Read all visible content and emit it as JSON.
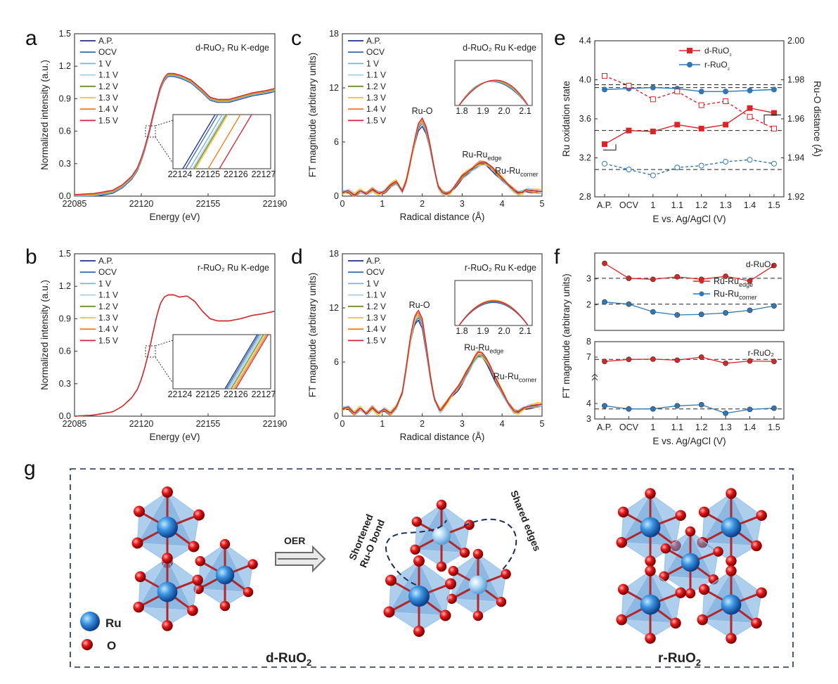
{
  "panel_labels": [
    "a",
    "b",
    "c",
    "d",
    "e",
    "f",
    "g"
  ],
  "chart_data": [
    {
      "id": "a",
      "type": "line",
      "annotation": "d-RuO₂ Ru K-edge",
      "xlabel": "Energy (eV)",
      "ylabel": "Normalized intensity (a.u.)",
      "xlim": [
        22085,
        22190
      ],
      "ylim": [
        0,
        1.5
      ],
      "xticks": [
        "22085",
        "22120",
        "22155",
        "22190"
      ],
      "yticks": [
        "0.0",
        "0.3",
        "0.6",
        "0.9",
        "1.2",
        "1.5"
      ],
      "legend": [
        "A.P.",
        "OCV",
        "1 V",
        "1.1 V",
        "1.2 V",
        "1.3 V",
        "1.4 V",
        "1.5 V"
      ],
      "inset_xticks": [
        "22124",
        "22125",
        "22126",
        "22127"
      ],
      "curve": {
        "x": [
          22085,
          22095,
          22105,
          22110,
          22115,
          22118,
          22120,
          22122,
          22124,
          22126,
          22128,
          22130,
          22132,
          22134,
          22137,
          22141,
          22146,
          22152,
          22156,
          22160,
          22166,
          22172,
          22178,
          22185,
          22190
        ],
        "y": [
          0.0,
          0.01,
          0.04,
          0.09,
          0.17,
          0.25,
          0.34,
          0.45,
          0.58,
          0.73,
          0.87,
          1.0,
          1.08,
          1.12,
          1.12,
          1.1,
          1.06,
          0.97,
          0.9,
          0.88,
          0.88,
          0.91,
          0.94,
          0.96,
          0.98
        ]
      }
    },
    {
      "id": "b",
      "type": "line",
      "annotation": "r-RuO₂ Ru K-edge",
      "xlabel": "Energy (eV)",
      "ylabel": "Normalized intensity (a.u.)",
      "xlim": [
        22085,
        22190
      ],
      "ylim": [
        0,
        1.5
      ],
      "xticks": [
        "22085",
        "22120",
        "22155",
        "22190"
      ],
      "yticks": [
        "0.0",
        "0.3",
        "0.6",
        "0.9",
        "1.2",
        "1.5"
      ],
      "legend": [
        "A.P.",
        "OCV",
        "1 V",
        "1.1 V",
        "1.2 V",
        "1.3 V",
        "1.4 V",
        "1.5 V"
      ],
      "inset_xticks": [
        "22124",
        "22125",
        "22126",
        "22127"
      ],
      "curve": {
        "x": [
          22085,
          22095,
          22105,
          22110,
          22115,
          22118,
          22120,
          22122,
          22124,
          22126,
          22128,
          22130,
          22132,
          22134,
          22137,
          22140,
          22144,
          22148,
          22152,
          22156,
          22160,
          22166,
          22172,
          22178,
          22185,
          22190
        ],
        "y": [
          0.0,
          0.01,
          0.04,
          0.09,
          0.17,
          0.25,
          0.34,
          0.46,
          0.6,
          0.76,
          0.92,
          1.04,
          1.1,
          1.12,
          1.12,
          1.1,
          1.11,
          1.06,
          0.97,
          0.9,
          0.88,
          0.88,
          0.9,
          0.93,
          0.95,
          0.97
        ]
      }
    },
    {
      "id": "c",
      "type": "line",
      "annotation": "d-RuO₂  Ru K-edge",
      "xlabel": "Radical distance (Å)",
      "ylabel": "FT magnitude (arbitrary units)",
      "xlim": [
        0,
        5
      ],
      "ylim": [
        0,
        18
      ],
      "xticks": [
        "0",
        "1",
        "2",
        "3",
        "4",
        "5"
      ],
      "yticks": [
        "0",
        "6",
        "12",
        "18"
      ],
      "legend": [
        "A.P.",
        "OCV",
        "1 V",
        "1.1 V",
        "1.2 V",
        "1.3 V",
        "1.4 V",
        "1.5 V"
      ],
      "peak_labels": [
        "Ru-O",
        "Ru-Ru",
        "edge",
        "Ru-Ru",
        "corner"
      ],
      "inset_xticks": [
        "1.8",
        "1.9",
        "2.0",
        "2.1"
      ],
      "curve": {
        "x": [
          0,
          0.15,
          0.3,
          0.45,
          0.6,
          0.75,
          0.9,
          1.05,
          1.2,
          1.35,
          1.5,
          1.6,
          1.7,
          1.8,
          1.9,
          2.0,
          2.1,
          2.2,
          2.3,
          2.4,
          2.5,
          2.6,
          2.7,
          2.8,
          2.9,
          3.0,
          3.1,
          3.2,
          3.3,
          3.45,
          3.6,
          3.75,
          3.9,
          4.05,
          4.2,
          4.3,
          4.4,
          4.5,
          4.6,
          4.75,
          5.0
        ],
        "y": [
          0.4,
          0.6,
          0.1,
          0.6,
          0.2,
          0.7,
          0.3,
          0.5,
          1.2,
          1.6,
          0.5,
          1.6,
          3.6,
          5.8,
          7.7,
          8.3,
          7.4,
          5.4,
          3.0,
          1.0,
          0.4,
          0.2,
          0.4,
          1.0,
          1.6,
          2.2,
          2.5,
          2.8,
          3.1,
          3.6,
          3.6,
          3.1,
          2.4,
          1.7,
          1.0,
          0.6,
          0.3,
          0.4,
          0.7,
          0.6,
          0.5
        ]
      }
    },
    {
      "id": "d",
      "type": "line",
      "annotation": "r-RuO₂  Ru K-edge",
      "xlabel": "Radical distance (Å)",
      "ylabel": "FT magnitude (arbitrary units)",
      "xlim": [
        0,
        5
      ],
      "ylim": [
        0,
        18
      ],
      "xticks": [
        "0",
        "1",
        "2",
        "3",
        "4",
        "5"
      ],
      "yticks": [
        "0",
        "6",
        "12",
        "18"
      ],
      "legend": [
        "A.P.",
        "OCV",
        "1 V",
        "1.1 V",
        "1.2 V",
        "1.3 V",
        "1.4 V",
        "1.5 V"
      ],
      "peak_labels": [
        "Ru-O",
        "Ru-Ru",
        "edge",
        "Ru-Ru",
        "corner"
      ],
      "inset_xticks": [
        "1.8",
        "1.9",
        "2.0",
        "2.1"
      ],
      "curve": {
        "x": [
          0,
          0.15,
          0.3,
          0.45,
          0.6,
          0.75,
          0.9,
          1.05,
          1.2,
          1.35,
          1.5,
          1.6,
          1.7,
          1.8,
          1.9,
          2.0,
          2.1,
          2.2,
          2.3,
          2.45,
          2.6,
          2.75,
          2.9,
          3.0,
          3.1,
          3.2,
          3.3,
          3.4,
          3.5,
          3.6,
          3.7,
          3.85,
          4.0,
          4.15,
          4.3,
          4.4,
          4.55,
          4.7,
          4.85,
          5.0
        ],
        "y": [
          0.8,
          1.0,
          0.3,
          0.9,
          0.2,
          0.9,
          0.3,
          0.8,
          0.3,
          1.0,
          2.5,
          5.2,
          8.3,
          10.5,
          11.3,
          10.4,
          7.6,
          4.4,
          1.9,
          0.5,
          1.4,
          2.4,
          3.2,
          3.9,
          4.7,
          5.4,
          6.2,
          6.8,
          6.7,
          6.2,
          5.4,
          4.0,
          2.7,
          1.4,
          0.5,
          0.4,
          0.9,
          1.1,
          1.2,
          1.3
        ]
      }
    },
    {
      "id": "e",
      "type": "line",
      "legend": [
        "d-RuO₂",
        "r-RuO₂"
      ],
      "xlabel": "E vs. Ag/AgCl (V)",
      "ylabel": "Ru oxidation state",
      "y2label": "Ru-O distance (Å)",
      "categories": [
        "A.P.",
        "OCV",
        "1",
        "1.1",
        "1.2",
        "1.3",
        "1.4",
        "1.5"
      ],
      "ylim": [
        2.8,
        4.4
      ],
      "y2lim": [
        1.92,
        2.0
      ],
      "yticks": [
        "2.8",
        "3.2",
        "3.6",
        "4.0",
        "4.4"
      ],
      "y2ticks": [
        "1.92",
        "1.94",
        "1.96",
        "1.98",
        "2.00"
      ],
      "series": [
        {
          "name": "d-RuO₂",
          "axis": "left",
          "color": "#d62728",
          "values": [
            3.34,
            3.48,
            3.47,
            3.54,
            3.5,
            3.54,
            3.71,
            3.66
          ]
        },
        {
          "name": "r-RuO₂",
          "axis": "left",
          "color": "#2f78b4",
          "values": [
            3.9,
            3.91,
            3.92,
            3.91,
            3.88,
            3.88,
            3.89,
            3.9
          ]
        },
        {
          "axis": "right",
          "color": "#d62728",
          "dashed": true,
          "values": [
            1.982,
            1.977,
            1.97,
            1.974,
            1.967,
            1.969,
            1.961,
            1.955
          ]
        },
        {
          "axis": "right",
          "color": "#2f78b4",
          "dashed": true,
          "values": [
            1.937,
            1.934,
            1.931,
            1.935,
            1.936,
            1.938,
            1.939,
            1.937
          ]
        }
      ],
      "hlines_left": [
        3.48,
        3.95,
        3.92
      ],
      "hlines_right": [
        1.934
      ]
    },
    {
      "id": "f",
      "type": "line",
      "xlabel": "E vs. Ag/AgCl (V)",
      "ylabel": "FT magnitude (arbitrary units)",
      "categories": [
        "A.P.",
        "OCV",
        "1",
        "1.1",
        "1.2",
        "1.3",
        "1.4",
        "1.5"
      ],
      "top": {
        "label": "d-RuO₂",
        "ylim": [
          1,
          4
        ],
        "yticks": [
          "2",
          "3"
        ],
        "legend": [
          "Ru-Ru",
          "edge",
          "Ru-Ru",
          "corner"
        ],
        "series": [
          {
            "color": "#d62728",
            "values": [
              3.6,
              3.02,
              2.98,
              3.08,
              2.98,
              3.1,
              2.92,
              3.52
            ]
          },
          {
            "color": "#2f78b4",
            "values": [
              2.1,
              2.02,
              1.72,
              1.6,
              1.62,
              1.68,
              1.78,
              1.95
            ]
          }
        ],
        "hlines": [
          3.02,
          2.02
        ]
      },
      "bottom": {
        "label": "r-RuO₂",
        "ylim": [
          3,
          8
        ],
        "yticks": [
          "3",
          "4",
          "7",
          "8"
        ],
        "series": [
          {
            "color": "#d62728",
            "values": [
              6.72,
              6.85,
              6.87,
              6.8,
              7.0,
              6.6,
              6.75,
              6.72
            ]
          },
          {
            "color": "#2f78b4",
            "values": [
              3.85,
              3.65,
              3.65,
              3.85,
              3.92,
              3.37,
              3.62,
              3.7
            ]
          }
        ],
        "hlines": [
          6.85,
          3.65
        ]
      }
    }
  ],
  "series_colors": [
    "#1f2f8a",
    "#3b6fb0",
    "#7ab3d9",
    "#a4cfe6",
    "#6f8c2a",
    "#f2c12e",
    "#f07f22",
    "#d3263a"
  ],
  "schematic": {
    "legend": [
      "Ru",
      "O"
    ],
    "arrow_label": "OER",
    "annotations": [
      "Shortened",
      "Ru-O bond",
      "Shared edges"
    ],
    "left_name": "d-RuO",
    "right_name": "r-RuO",
    "subscript": "2"
  }
}
